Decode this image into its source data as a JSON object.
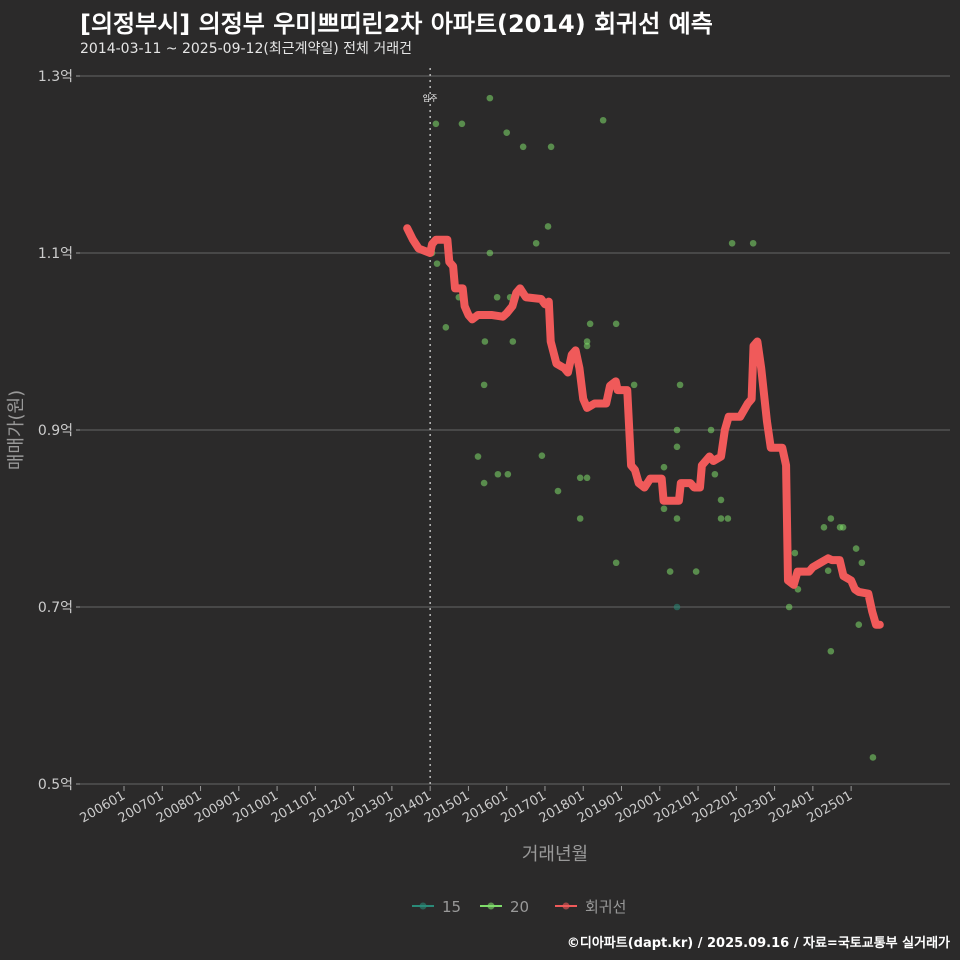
{
  "title": "[의정부시] 의정부 우미쁘띠린2차 아파트(2014) 회귀선 예측",
  "subtitle": "2014-03-11 ~ 2025-09-12(최근계약일) 전체 거래건",
  "caption": "©디아파트(dapt.kr) / 2025.09.16 / 자료=국토교통부 실거래가",
  "colors": {
    "background": "#2b2a2a",
    "s15": "#2a8a78",
    "s20": "#7fdc6a",
    "regression": "#f05a5a",
    "grid": "#5a5a5a"
  },
  "chart_data": {
    "type": "scatter",
    "title": "[의정부시] 의정부 우미쁘띠린2차 아파트(2014) 회귀선 예측",
    "xlabel": "거래년월",
    "ylabel": "매매가(원)",
    "xlim": [
      2005.5,
      2026.5
    ],
    "ylim": [
      0.5,
      1.3
    ],
    "grid": "horizontal",
    "yticks": [
      {
        "v": 0.5,
        "label": "0.5억"
      },
      {
        "v": 0.7,
        "label": "0.7억"
      },
      {
        "v": 0.9,
        "label": "0.9억"
      },
      {
        "v": 1.1,
        "label": "1.1억"
      },
      {
        "v": 1.3,
        "label": "1.3억"
      }
    ],
    "xticks": [
      "200601",
      "200701",
      "200801",
      "200901",
      "201001",
      "201101",
      "201201",
      "201301",
      "201401",
      "201501",
      "201601",
      "201701",
      "201801",
      "201901",
      "202001",
      "202101",
      "202201",
      "202301",
      "202401",
      "202501"
    ],
    "annotation": {
      "x": 2014.0,
      "label": "입주"
    },
    "legend": {
      "position": "bottom",
      "entries": [
        "15",
        "20",
        "회귀선"
      ]
    },
    "series": [
      {
        "name": "15",
        "points": [
          [
            2020.45,
            0.7
          ]
        ]
      },
      {
        "name": "20",
        "points": [
          [
            2014.15,
            1.246
          ],
          [
            2014.83,
            1.246
          ],
          [
            2015.56,
            1.275
          ],
          [
            2016.0,
            1.236
          ],
          [
            2016.43,
            1.22
          ],
          [
            2017.16,
            1.22
          ],
          [
            2018.52,
            1.25
          ],
          [
            2017.08,
            1.13
          ],
          [
            2016.77,
            1.111
          ],
          [
            2021.89,
            1.111
          ],
          [
            2022.44,
            1.111
          ],
          [
            2015.56,
            1.1
          ],
          [
            2014.18,
            1.088
          ],
          [
            2014.05,
            1.1
          ],
          [
            2014.41,
            1.016
          ],
          [
            2014.75,
            1.05
          ],
          [
            2015.75,
            1.05
          ],
          [
            2016.09,
            1.05
          ],
          [
            2015.43,
            1.0
          ],
          [
            2016.16,
            1.0
          ],
          [
            2018.18,
            1.02
          ],
          [
            2018.86,
            1.02
          ],
          [
            2018.1,
            1.0
          ],
          [
            2018.1,
            0.995
          ],
          [
            2015.41,
            0.951
          ],
          [
            2019.33,
            0.951
          ],
          [
            2020.53,
            0.951
          ],
          [
            2015.25,
            0.87
          ],
          [
            2016.92,
            0.871
          ],
          [
            2015.41,
            0.84
          ],
          [
            2015.77,
            0.85
          ],
          [
            2016.03,
            0.85
          ],
          [
            2017.34,
            0.831
          ],
          [
            2017.92,
            0.846
          ],
          [
            2018.1,
            0.846
          ],
          [
            2017.92,
            0.8
          ],
          [
            2018.86,
            0.75
          ],
          [
            2020.11,
            0.858
          ],
          [
            2020.45,
            0.9
          ],
          [
            2020.45,
            0.881
          ],
          [
            2021.34,
            0.9
          ],
          [
            2021.44,
            0.85
          ],
          [
            2021.6,
            0.821
          ],
          [
            2021.6,
            0.8
          ],
          [
            2021.78,
            0.8
          ],
          [
            2020.11,
            0.811
          ],
          [
            2020.45,
            0.8
          ],
          [
            2020.27,
            0.74
          ],
          [
            2020.95,
            0.74
          ],
          [
            2023.38,
            0.7
          ],
          [
            2023.53,
            0.761
          ],
          [
            2023.61,
            0.72
          ],
          [
            2024.29,
            0.79
          ],
          [
            2024.47,
            0.8
          ],
          [
            2024.71,
            0.79
          ],
          [
            2024.79,
            0.79
          ],
          [
            2024.4,
            0.741
          ],
          [
            2025.13,
            0.766
          ],
          [
            2025.28,
            0.75
          ],
          [
            2025.2,
            0.68
          ],
          [
            2024.47,
            0.65
          ],
          [
            2025.57,
            0.53
          ]
        ]
      },
      {
        "name": "회귀선",
        "type": "line",
        "points": [
          [
            2013.4,
            1.128
          ],
          [
            2013.55,
            1.115
          ],
          [
            2013.7,
            1.105
          ],
          [
            2014.0,
            1.1
          ],
          [
            2014.05,
            1.11
          ],
          [
            2014.15,
            1.115
          ],
          [
            2014.45,
            1.115
          ],
          [
            2014.5,
            1.09
          ],
          [
            2014.6,
            1.085
          ],
          [
            2014.65,
            1.06
          ],
          [
            2014.85,
            1.06
          ],
          [
            2014.9,
            1.04
          ],
          [
            2015.0,
            1.03
          ],
          [
            2015.1,
            1.025
          ],
          [
            2015.25,
            1.03
          ],
          [
            2015.6,
            1.03
          ],
          [
            2015.9,
            1.028
          ],
          [
            2016.0,
            1.032
          ],
          [
            2016.15,
            1.04
          ],
          [
            2016.25,
            1.055
          ],
          [
            2016.35,
            1.06
          ],
          [
            2016.5,
            1.05
          ],
          [
            2016.9,
            1.048
          ],
          [
            2017.0,
            1.042
          ],
          [
            2017.1,
            1.045
          ],
          [
            2017.15,
            1.0
          ],
          [
            2017.3,
            0.975
          ],
          [
            2017.5,
            0.97
          ],
          [
            2017.6,
            0.965
          ],
          [
            2017.7,
            0.985
          ],
          [
            2017.8,
            0.99
          ],
          [
            2017.9,
            0.97
          ],
          [
            2018.0,
            0.935
          ],
          [
            2018.1,
            0.925
          ],
          [
            2018.3,
            0.93
          ],
          [
            2018.6,
            0.93
          ],
          [
            2018.7,
            0.95
          ],
          [
            2018.85,
            0.955
          ],
          [
            2018.9,
            0.945
          ],
          [
            2019.15,
            0.945
          ],
          [
            2019.25,
            0.86
          ],
          [
            2019.35,
            0.855
          ],
          [
            2019.45,
            0.84
          ],
          [
            2019.6,
            0.835
          ],
          [
            2019.75,
            0.845
          ],
          [
            2020.05,
            0.845
          ],
          [
            2020.1,
            0.82
          ],
          [
            2020.5,
            0.82
          ],
          [
            2020.55,
            0.84
          ],
          [
            2020.8,
            0.84
          ],
          [
            2020.9,
            0.835
          ],
          [
            2021.05,
            0.835
          ],
          [
            2021.1,
            0.86
          ],
          [
            2021.3,
            0.87
          ],
          [
            2021.4,
            0.865
          ],
          [
            2021.6,
            0.87
          ],
          [
            2021.7,
            0.9
          ],
          [
            2021.8,
            0.915
          ],
          [
            2022.1,
            0.915
          ],
          [
            2022.3,
            0.93
          ],
          [
            2022.4,
            0.935
          ],
          [
            2022.45,
            0.995
          ],
          [
            2022.55,
            1.0
          ],
          [
            2022.65,
            0.97
          ],
          [
            2022.8,
            0.91
          ],
          [
            2022.9,
            0.88
          ],
          [
            2023.2,
            0.88
          ],
          [
            2023.3,
            0.86
          ],
          [
            2023.35,
            0.73
          ],
          [
            2023.5,
            0.725
          ],
          [
            2023.6,
            0.74
          ],
          [
            2023.9,
            0.74
          ],
          [
            2024.0,
            0.745
          ],
          [
            2024.2,
            0.75
          ],
          [
            2024.4,
            0.755
          ],
          [
            2024.5,
            0.753
          ],
          [
            2024.7,
            0.753
          ],
          [
            2024.8,
            0.735
          ],
          [
            2025.0,
            0.73
          ],
          [
            2025.1,
            0.72
          ],
          [
            2025.2,
            0.717
          ],
          [
            2025.45,
            0.715
          ],
          [
            2025.55,
            0.695
          ],
          [
            2025.65,
            0.68
          ],
          [
            2025.75,
            0.68
          ]
        ]
      }
    ]
  }
}
